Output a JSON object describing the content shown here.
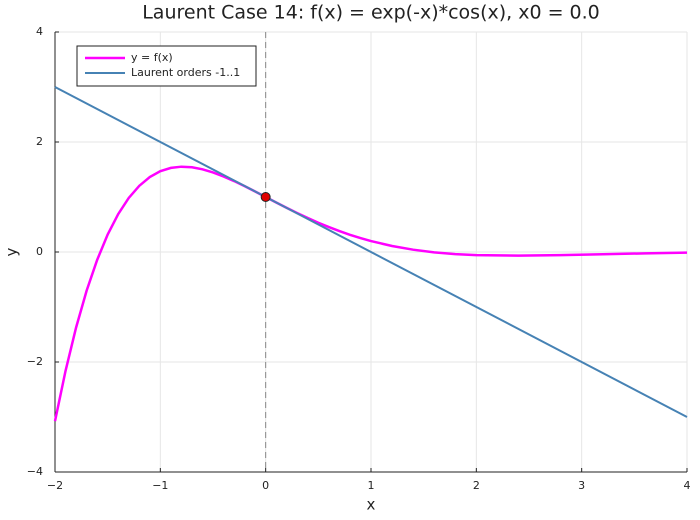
{
  "chart_data": {
    "type": "line",
    "title": "Laurent Case 14: f(x) = exp(-x)*cos(x), x0 = 0.0",
    "x_label": "x",
    "y_label": "y",
    "xlim": [
      -2,
      4
    ],
    "ylim": [
      -4,
      4
    ],
    "xticks": [
      {
        "value": -2,
        "label": "−2"
      },
      {
        "value": -1,
        "label": "−1"
      },
      0,
      1,
      2,
      3,
      4
    ],
    "yticks": [
      {
        "value": -4,
        "label": "−4"
      },
      {
        "value": -2,
        "label": "−2"
      },
      0,
      2,
      4
    ],
    "grid": true,
    "legend": "top-left",
    "vline_x": 0,
    "point": {
      "x": 0,
      "y": 1,
      "color": "#e00000"
    },
    "series": [
      {
        "name": "y = f(x)",
        "color": "#ff00ff",
        "x": [
          -2,
          -1.9,
          -1.8,
          -1.7,
          -1.6,
          -1.5,
          -1.4,
          -1.3,
          -1.2,
          -1.1,
          -1.0,
          -0.9,
          -0.8,
          -0.7,
          -0.6,
          -0.5,
          -0.4,
          -0.3,
          -0.2,
          -0.1,
          0,
          0.1,
          0.2,
          0.3,
          0.4,
          0.5,
          0.6,
          0.7,
          0.8,
          0.9,
          1.0,
          1.2,
          1.4,
          1.6,
          1.8,
          2.0,
          2.4,
          2.8,
          3.2,
          3.6,
          4.0
        ],
        "values": [
          -3.075,
          -2.162,
          -1.375,
          -0.705,
          -0.145,
          0.317,
          0.689,
          0.982,
          1.203,
          1.363,
          1.469,
          1.529,
          1.551,
          1.54,
          1.504,
          1.447,
          1.374,
          1.29,
          1.197,
          1.1,
          1,
          0.9,
          0.802,
          0.708,
          0.617,
          0.532,
          0.453,
          0.38,
          0.313,
          0.253,
          0.199,
          0.109,
          0.042,
          -0.006,
          -0.038,
          -0.056,
          -0.067,
          -0.057,
          -0.041,
          -0.025,
          -0.012
        ]
      },
      {
        "name": "Laurent orders -1..1",
        "color": "#4682b4",
        "x": [
          -2,
          4
        ],
        "values": [
          3,
          -3
        ]
      }
    ]
  }
}
